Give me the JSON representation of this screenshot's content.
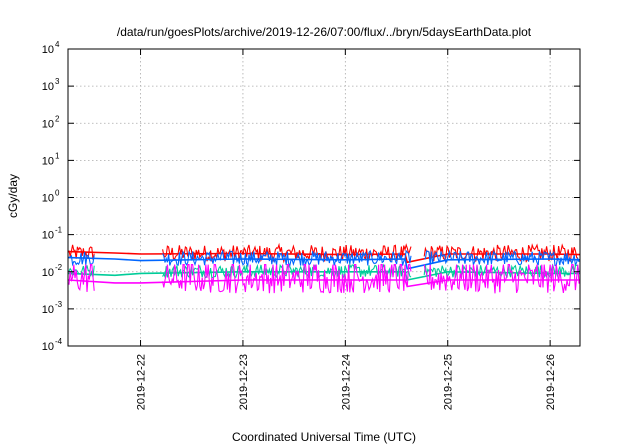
{
  "chart_data": {
    "type": "line",
    "title": "/data/run/goesPlots/archive/2019-12-26/07:00/flux/../bryn/5daysEarthData.plot",
    "xlabel": "Coordinated Universal Time (UTC)",
    "ylabel": "cGy/day",
    "yscale": "log",
    "ylim": [
      0.0001,
      10000
    ],
    "xlim": [
      "2019-12-21T07:00",
      "2019-12-26T07:00"
    ],
    "grid": true,
    "y_ticks": [
      {
        "base": "10",
        "exp": "-4",
        "value": 0.0001
      },
      {
        "base": "10",
        "exp": "-3",
        "value": 0.001
      },
      {
        "base": "10",
        "exp": "-2",
        "value": 0.01
      },
      {
        "base": "10",
        "exp": "-1",
        "value": 0.1
      },
      {
        "base": "10",
        "exp": "0",
        "value": 1
      },
      {
        "base": "10",
        "exp": "1",
        "value": 10
      },
      {
        "base": "10",
        "exp": "2",
        "value": 100
      },
      {
        "base": "10",
        "exp": "3",
        "value": 1000
      },
      {
        "base": "10",
        "exp": "4",
        "value": 10000
      }
    ],
    "x_ticks": [
      "2019-12-22",
      "2019-12-23",
      "2019-12-24",
      "2019-12-25",
      "2019-12-26"
    ],
    "series": [
      {
        "color": "#ff0000",
        "base": 0.03,
        "spread": 0.45,
        "x": [
          "2019-12-21T07:00",
          "2019-12-21T18:00",
          "2019-12-22T00:00",
          "2019-12-23T00:00",
          "2019-12-24T00:00",
          "2019-12-24T14:00",
          "2019-12-24T14:30",
          "2019-12-25T00:00",
          "2019-12-26T00:00",
          "2019-12-26T07:00"
        ],
        "y": [
          0.035,
          0.032,
          0.03,
          0.031,
          0.029,
          0.03,
          0.018,
          0.03,
          0.03,
          0.029
        ]
      },
      {
        "color": "#0066ff",
        "base": 0.022,
        "spread": 0.4,
        "x": [
          "2019-12-21T07:00",
          "2019-12-21T18:00",
          "2019-12-22T00:00",
          "2019-12-23T00:00",
          "2019-12-24T00:00",
          "2019-12-24T14:00",
          "2019-12-24T14:30",
          "2019-12-25T00:00",
          "2019-12-26T00:00",
          "2019-12-26T07:00"
        ],
        "y": [
          0.024,
          0.022,
          0.02,
          0.022,
          0.021,
          0.022,
          0.012,
          0.021,
          0.022,
          0.021
        ]
      },
      {
        "color": "#00cc99",
        "base": 0.01,
        "spread": 0.35,
        "x": [
          "2019-12-21T07:00",
          "2019-12-21T18:00",
          "2019-12-22T00:00",
          "2019-12-23T00:00",
          "2019-12-24T00:00",
          "2019-12-24T14:00",
          "2019-12-24T14:30",
          "2019-12-25T00:00",
          "2019-12-26T00:00",
          "2019-12-26T07:00"
        ],
        "y": [
          0.009,
          0.008,
          0.009,
          0.01,
          0.01,
          0.01,
          0.006,
          0.01,
          0.009,
          0.009
        ]
      },
      {
        "color": "#ff00ff",
        "base": 0.006,
        "spread": 0.8,
        "x": [
          "2019-12-21T07:00",
          "2019-12-21T18:00",
          "2019-12-22T00:00",
          "2019-12-23T00:00",
          "2019-12-24T00:00",
          "2019-12-24T14:00",
          "2019-12-24T14:30",
          "2019-12-25T00:00",
          "2019-12-26T00:00",
          "2019-12-26T07:00"
        ],
        "y": [
          0.006,
          0.005,
          0.005,
          0.006,
          0.006,
          0.006,
          0.004,
          0.006,
          0.006,
          0.006
        ]
      }
    ]
  }
}
